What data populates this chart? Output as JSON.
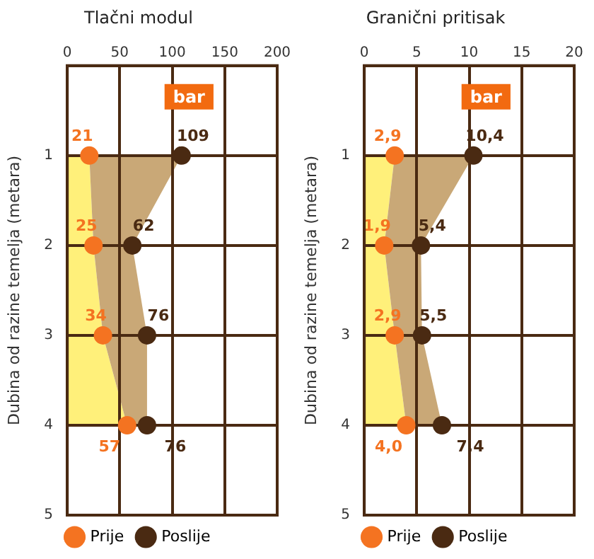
{
  "chart_data": [
    {
      "type": "area",
      "orientation": "horizontal",
      "title": "Tlačni modul",
      "ylabel": "Dubina od razine temelja (metara)",
      "annotations": [
        "bar"
      ],
      "categories": [
        null,
        "1",
        "2",
        "3",
        "4",
        "5"
      ],
      "xlim": [
        0,
        200
      ],
      "xticks": [
        0,
        50,
        100,
        150,
        200
      ],
      "grid": true,
      "legend": "bottom",
      "marker": "circle",
      "data_labels": true,
      "series": [
        {
          "name": "Prije",
          "color": "#fff07a",
          "colors": [
            null,
            "#f47321",
            "#f47321",
            "#f47321",
            "#f47321",
            null
          ],
          "values": [
            null,
            21,
            25,
            34,
            57,
            null
          ]
        },
        {
          "name": "Poslije",
          "color": "#c9a877",
          "colors": [
            null,
            "#4a2a12",
            "#4a2a12",
            "#4a2a12",
            "#4a2a12",
            null
          ],
          "values": [
            null,
            109,
            62,
            76,
            76,
            null
          ]
        }
      ]
    },
    {
      "type": "area",
      "orientation": "horizontal",
      "title": "Granični pritisak",
      "ylabel": "Dubina od razine temelja (metara)",
      "annotations": [
        "bar"
      ],
      "categories": [
        null,
        "1",
        "2",
        "3",
        "4",
        "5"
      ],
      "xlim": [
        0,
        20
      ],
      "xticks": [
        0,
        5,
        10,
        15,
        20
      ],
      "grid": true,
      "legend": "bottom",
      "marker": "circle",
      "series": [
        {
          "name": "Prije",
          "color": "#fff07a",
          "colors": [
            null,
            "#f47321",
            "#f47321",
            "#f47321",
            "#f47321",
            null
          ],
          "values": [
            null,
            2.9,
            1.9,
            2.9,
            4.0,
            null
          ],
          "value_labels": [
            null,
            "2,9",
            "1,9",
            "2,9",
            "4,0",
            null
          ]
        },
        {
          "name": "Poslije",
          "color": "#c9a877",
          "colors": [
            null,
            "#4a2a12",
            "#4a2a12",
            "#4a2a12",
            "#4a2a12",
            null
          ],
          "values": [
            null,
            10.4,
            5.4,
            5.5,
            7.4,
            null
          ],
          "value_labels": [
            null,
            "10,4",
            "5,4",
            "5,5",
            "7,4",
            null
          ]
        }
      ]
    }
  ]
}
